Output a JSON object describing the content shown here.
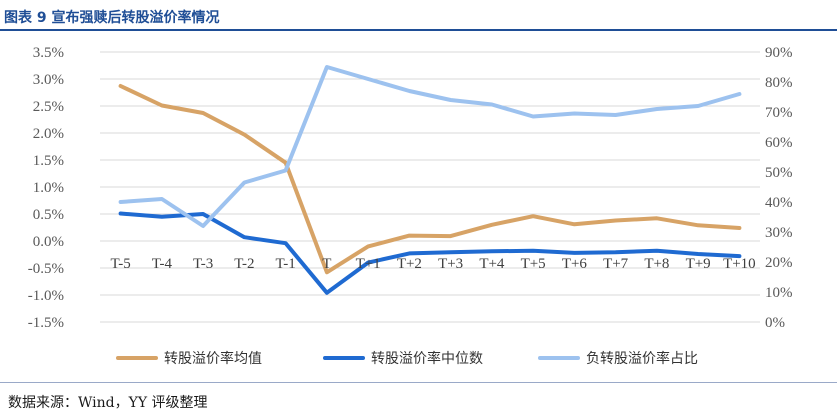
{
  "header": {
    "title": "图表 9 宣布强赎后转股溢价率情况"
  },
  "footer": {
    "source": "数据来源：Wind，YY 评级整理"
  },
  "colors": {
    "mean": "#d7a366",
    "median": "#1f6ad1",
    "negative_share": "#9dc2ef",
    "grid": "#d9d9d9",
    "title": "#1f4e96"
  },
  "chart_data": {
    "type": "line",
    "x": [
      "T-5",
      "T-4",
      "T-3",
      "T-2",
      "T-1",
      "T",
      "T+1",
      "T+2",
      "T+3",
      "T+4",
      "T+5",
      "T+6",
      "T+7",
      "T+8",
      "T+9",
      "T+10"
    ],
    "left_axis": {
      "min": -1.5,
      "max": 3.5,
      "step": 0.5,
      "tick_labels": [
        "-1.5%",
        "-1.0%",
        "-0.5%",
        "0.0%",
        "0.5%",
        "1.0%",
        "1.5%",
        "2.0%",
        "2.5%",
        "3.0%",
        "3.5%"
      ]
    },
    "right_axis": {
      "min": 0,
      "max": 90,
      "step": 10,
      "tick_labels": [
        "0%",
        "10%",
        "20%",
        "30%",
        "40%",
        "50%",
        "60%",
        "70%",
        "80%",
        "90%"
      ]
    },
    "grid": true,
    "legend_position": "bottom",
    "series": [
      {
        "name": "转股溢价率均值",
        "axis": "left",
        "color": "#d7a366",
        "values": [
          2.87,
          2.51,
          2.37,
          1.97,
          1.45,
          -0.58,
          -0.1,
          0.1,
          0.09,
          0.3,
          0.46,
          0.31,
          0.38,
          0.42,
          0.29,
          0.24
        ]
      },
      {
        "name": "转股溢价率中位数",
        "axis": "left",
        "color": "#1f6ad1",
        "values": [
          0.51,
          0.45,
          0.5,
          0.07,
          -0.04,
          -0.96,
          -0.4,
          -0.23,
          -0.21,
          -0.19,
          -0.18,
          -0.22,
          -0.21,
          -0.18,
          -0.24,
          -0.28
        ]
      },
      {
        "name": "负转股溢价率占比",
        "axis": "right",
        "color": "#9dc2ef",
        "values": [
          40,
          41,
          32,
          46.5,
          50.5,
          85,
          81,
          77,
          74,
          72.5,
          68.5,
          69.5,
          69,
          71,
          72,
          76
        ]
      }
    ]
  }
}
